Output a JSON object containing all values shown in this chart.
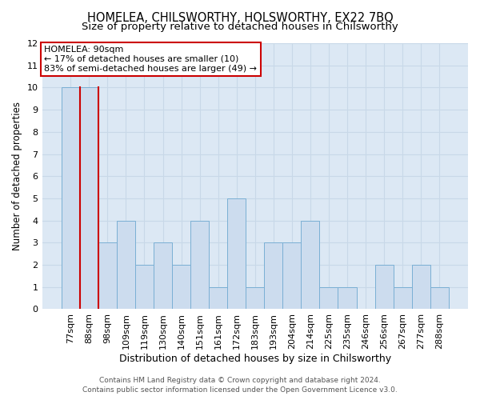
{
  "title": "HOMELEA, CHILSWORTHY, HOLSWORTHY, EX22 7BQ",
  "subtitle": "Size of property relative to detached houses in Chilsworthy",
  "xlabel": "Distribution of detached houses by size in Chilsworthy",
  "ylabel": "Number of detached properties",
  "categories": [
    "77sqm",
    "88sqm",
    "98sqm",
    "109sqm",
    "119sqm",
    "130sqm",
    "140sqm",
    "151sqm",
    "161sqm",
    "172sqm",
    "183sqm",
    "193sqm",
    "204sqm",
    "214sqm",
    "225sqm",
    "235sqm",
    "246sqm",
    "256sqm",
    "267sqm",
    "277sqm",
    "288sqm"
  ],
  "values": [
    10,
    10,
    3,
    4,
    2,
    3,
    2,
    4,
    1,
    5,
    1,
    3,
    3,
    4,
    1,
    1,
    0,
    2,
    1,
    2,
    1
  ],
  "highlight_index": 1,
  "bar_color": "#ccdcee",
  "bar_edge_color": "#7aafd4",
  "highlight_edge_color": "#cc0000",
  "annotation_line1": "HOMELEA: 90sqm",
  "annotation_line2": "← 17% of detached houses are smaller (10)",
  "annotation_line3": "83% of semi-detached houses are larger (49) →",
  "annotation_box_facecolor": "#ffffff",
  "annotation_box_edgecolor": "#cc0000",
  "ylim": [
    0,
    12
  ],
  "yticks": [
    0,
    1,
    2,
    3,
    4,
    5,
    6,
    7,
    8,
    9,
    10,
    11,
    12
  ],
  "grid_color": "#c8d8e8",
  "bg_color": "#dce8f4",
  "footer_line1": "Contains HM Land Registry data © Crown copyright and database right 2024.",
  "footer_line2": "Contains public sector information licensed under the Open Government Licence v3.0.",
  "title_fontsize": 10.5,
  "subtitle_fontsize": 9.5,
  "tick_fontsize": 8,
  "ylabel_fontsize": 8.5,
  "xlabel_fontsize": 9,
  "annotation_fontsize": 8,
  "footer_fontsize": 6.5
}
